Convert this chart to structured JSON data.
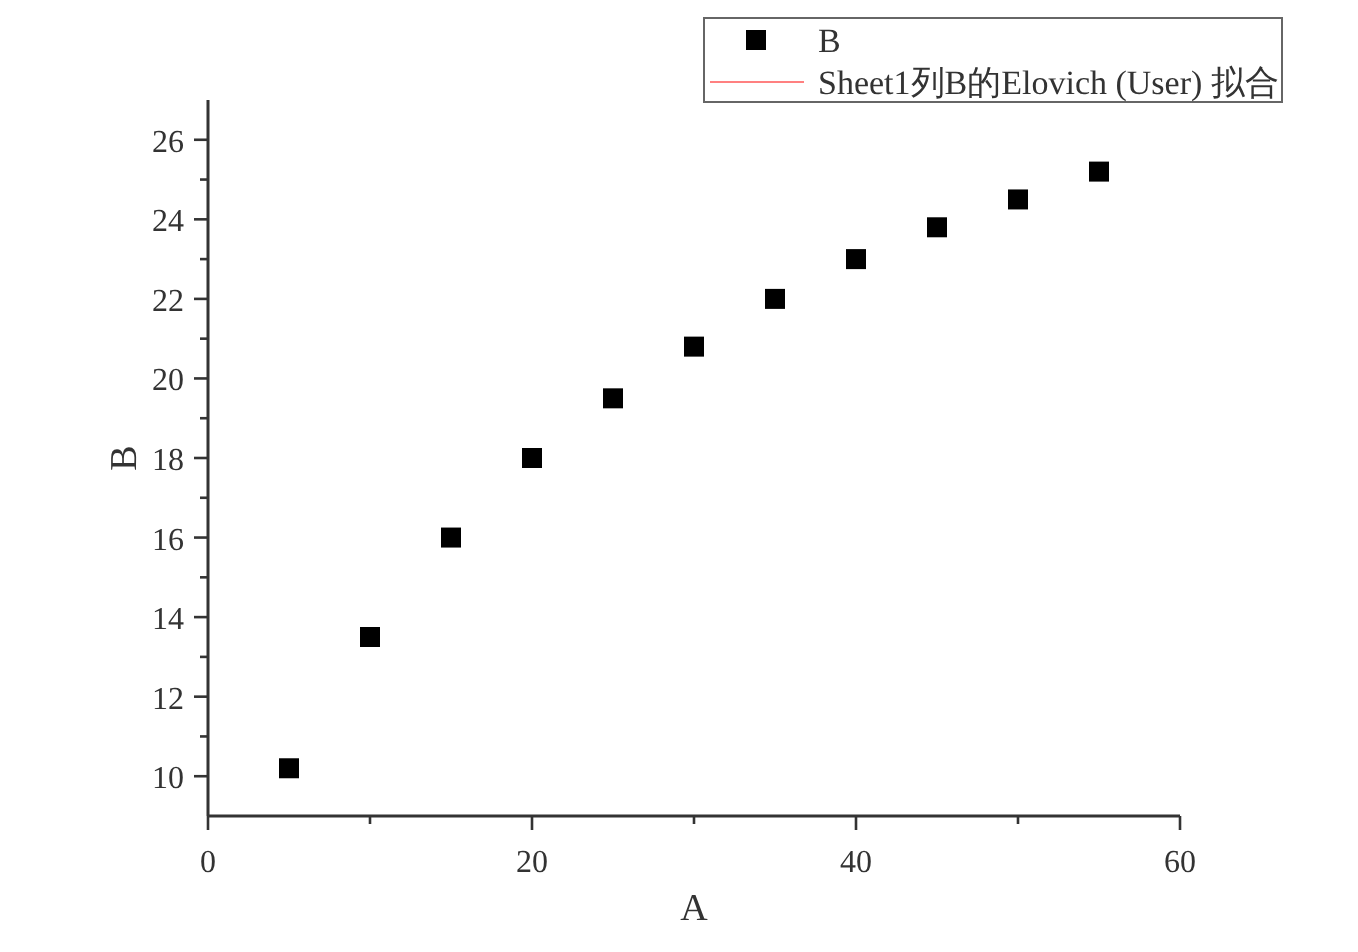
{
  "chart_data": {
    "type": "scatter",
    "xlabel": "A",
    "ylabel": "B",
    "x": [
      5,
      10,
      15,
      20,
      25,
      30,
      35,
      40,
      45,
      50,
      55
    ],
    "series": [
      {
        "name": "B",
        "color": "#000000",
        "marker": "square",
        "values": [
          10.2,
          13.5,
          16.0,
          18.0,
          19.5,
          20.8,
          22.0,
          23.0,
          23.8,
          24.5,
          25.2
        ]
      },
      {
        "name": "Sheet1列B的Elovich (User) 拟合",
        "type": "line",
        "color": "#ff8080",
        "marker": "none",
        "values": [
          null,
          null,
          null,
          null,
          null,
          null,
          null,
          null,
          null,
          null,
          null
        ]
      }
    ],
    "xlim": [
      0,
      60
    ],
    "xticks": [
      0,
      {
        "value": 10,
        "label": null
      },
      20,
      {
        "value": 30,
        "label": null
      },
      40,
      {
        "value": 50,
        "label": null
      },
      60
    ],
    "ylim": [
      9,
      27
    ],
    "yticks": [
      10,
      {
        "value": 11,
        "label": null
      },
      12,
      {
        "value": 13,
        "label": null
      },
      14,
      {
        "value": 15,
        "label": null
      },
      16,
      {
        "value": 17,
        "label": null
      },
      18,
      {
        "value": 19,
        "label": null
      },
      20,
      {
        "value": 21,
        "label": null
      },
      22,
      {
        "value": 23,
        "label": null
      },
      24,
      {
        "value": 25,
        "label": null
      },
      26
    ],
    "grid": false,
    "legend": "top right"
  }
}
